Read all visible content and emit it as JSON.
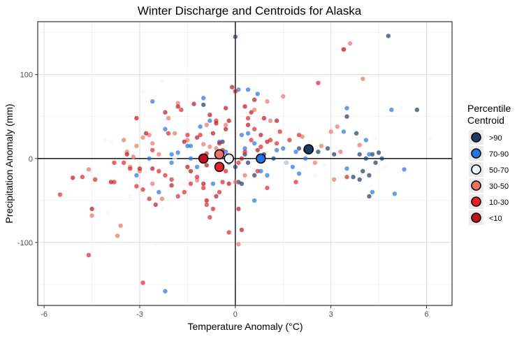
{
  "chart_data": {
    "type": "scatter",
    "title": "Winter Discharge and Centroids for Alaska",
    "xlabel": "Temperature Anomaly (°C)",
    "ylabel": "Precipitation Anomaly (mm)",
    "xlim": [
      -6.2,
      6.8
    ],
    "ylim": [
      -175,
      163
    ],
    "xticks": [
      -6,
      -3,
      0,
      3,
      6
    ],
    "xtick_labels": [
      "-6",
      "-3",
      "0",
      "3",
      "6"
    ],
    "yticks": [
      -100,
      0,
      100
    ],
    "ytick_labels": [
      "-100",
      "0",
      "100"
    ],
    "grid": true,
    "legend": {
      "title_lines": [
        "Percentile",
        "Centroid"
      ],
      "placement": "right",
      "entries": [
        ">90",
        "70-90",
        "50-70",
        "30-50",
        "10-30",
        "<10"
      ]
    },
    "colors": {
      ">90": "#1f3a66",
      "70-90": "#1f75f0",
      "50-70": "#f2f8fc",
      "30-50": "#ee7363",
      "10-30": "#ee1d24",
      "<10": "#c41018"
    },
    "series": [
      {
        "name": ">90",
        "centroid": [
          2.3,
          11
        ],
        "points": [
          [
            0,
            145
          ],
          [
            4.8,
            146
          ],
          [
            5.7,
            58
          ],
          [
            3.5,
            50
          ],
          [
            3.8,
            30
          ],
          [
            3.9,
            5
          ],
          [
            4.0,
            -15
          ],
          [
            4.2,
            -20
          ],
          [
            4.3,
            5
          ],
          [
            4.5,
            7
          ],
          [
            4.1,
            0
          ],
          [
            4.4,
            -5
          ],
          [
            3.7,
            -22
          ],
          [
            3.9,
            -25
          ],
          [
            4.2,
            -45
          ],
          [
            2.6,
            8
          ],
          [
            2.9,
            12
          ],
          [
            2.0,
            12
          ],
          [
            1.2,
            0
          ],
          [
            0.6,
            -20
          ],
          [
            0.4,
            -5
          ],
          [
            0.2,
            -30
          ],
          [
            0.1,
            -28
          ],
          [
            0,
            -10
          ],
          [
            -1,
            64
          ],
          [
            -0.4,
            20
          ],
          [
            0.3,
            5
          ],
          [
            4.6,
            0
          ],
          [
            1.6,
            -5
          ],
          [
            0.9,
            5
          ],
          [
            3.1,
            5
          ]
        ]
      },
      {
        "name": "70-90",
        "centroid": [
          0.8,
          0
        ],
        "points": [
          [
            -2.2,
            -158
          ],
          [
            -2.0,
            -5
          ],
          [
            -2.2,
            35
          ],
          [
            -2.0,
            5
          ],
          [
            -1.8,
            7
          ],
          [
            -1.5,
            15
          ],
          [
            -1.4,
            0
          ],
          [
            -1.2,
            -10
          ],
          [
            -1.1,
            38
          ],
          [
            -1,
            72
          ],
          [
            -0.8,
            45
          ],
          [
            -0.7,
            -30
          ],
          [
            -0.5,
            20
          ],
          [
            -0.3,
            8
          ],
          [
            -0.2,
            -5
          ],
          [
            0.2,
            28
          ],
          [
            0.4,
            30
          ],
          [
            0.6,
            18
          ],
          [
            0.8,
            -15
          ],
          [
            1.0,
            -20
          ],
          [
            1.3,
            10
          ],
          [
            1.5,
            12
          ],
          [
            1.8,
            -10
          ],
          [
            2.0,
            -18
          ],
          [
            2.2,
            0
          ],
          [
            0.1,
            82
          ],
          [
            0.4,
            82
          ],
          [
            0.7,
            77
          ],
          [
            3.4,
            32
          ],
          [
            3.5,
            60
          ],
          [
            4.1,
            22
          ],
          [
            4.3,
            -40
          ],
          [
            4.9,
            58
          ],
          [
            5.0,
            -42
          ],
          [
            5.3,
            -13
          ],
          [
            3.5,
            -12
          ],
          [
            4.2,
            5
          ],
          [
            0.6,
            -50
          ],
          [
            -2.4,
            -40
          ],
          [
            1.9,
            8
          ],
          [
            -3.1,
            -20
          ],
          [
            -2.6,
            68
          ],
          [
            -2.7,
            0
          ],
          [
            0.3,
            12
          ],
          [
            -1.4,
            15
          ]
        ]
      },
      {
        "name": "50-70",
        "centroid": [
          -0.2,
          0
        ],
        "points": [
          [
            -1.5,
            95
          ],
          [
            -2.3,
            92
          ],
          [
            -2.5,
            -103
          ],
          [
            -2.3,
            -60
          ],
          [
            -1.6,
            -30
          ],
          [
            -0.8,
            -15
          ],
          [
            -0.5,
            0
          ],
          [
            -0.3,
            15
          ],
          [
            1.2,
            15
          ],
          [
            1.6,
            -5
          ],
          [
            2.2,
            -10
          ],
          [
            2.8,
            -8
          ],
          [
            3.2,
            12
          ],
          [
            4.4,
            24
          ],
          [
            6.1,
            24
          ],
          [
            -3.9,
            -35
          ],
          [
            -4.0,
            -65
          ],
          [
            -4.4,
            -60
          ],
          [
            -3.9,
            20
          ],
          [
            -4.1,
            22
          ],
          [
            -1.9,
            0
          ],
          [
            1.5,
            40
          ],
          [
            2.0,
            35
          ],
          [
            -0.7,
            -60
          ],
          [
            0.1,
            60
          ],
          [
            4.7,
            -10
          ],
          [
            -3.3,
            -45
          ],
          [
            -2.9,
            80
          ],
          [
            5.2,
            60
          ],
          [
            2.5,
            -20
          ],
          [
            -0.9,
            25
          ]
        ]
      },
      {
        "name": "30-50",
        "centroid": [
          -0.5,
          5
        ],
        "points": [
          [
            -4.6,
            -13
          ],
          [
            -4.5,
            -68
          ],
          [
            -3.7,
            -92
          ],
          [
            -3.4,
            8
          ],
          [
            -3.3,
            -10
          ],
          [
            -3.1,
            15
          ],
          [
            -3.0,
            -15
          ],
          [
            -2.9,
            25
          ],
          [
            -2.7,
            28
          ],
          [
            -2.6,
            18
          ],
          [
            -2.3,
            -48
          ],
          [
            -2.1,
            48
          ],
          [
            -1.8,
            66
          ],
          [
            -1.5,
            22
          ],
          [
            -1.2,
            -26
          ],
          [
            -1.0,
            17
          ],
          [
            -0.8,
            14
          ],
          [
            -0.6,
            12
          ],
          [
            -0.3,
            40
          ],
          [
            0.0,
            -28
          ],
          [
            0.1,
            -102
          ],
          [
            1.0,
            68
          ],
          [
            1.5,
            74
          ],
          [
            2.1,
            26
          ],
          [
            2.7,
            15
          ],
          [
            3.0,
            32
          ],
          [
            3.2,
            38
          ],
          [
            3.4,
            130
          ],
          [
            3.6,
            137
          ],
          [
            3.9,
            16
          ],
          [
            4.0,
            95
          ],
          [
            3.3,
            8
          ],
          [
            -3.5,
            22
          ],
          [
            -3.2,
            2
          ],
          [
            -2.4,
            5
          ],
          [
            -1.9,
            30
          ],
          [
            -0.9,
            40
          ],
          [
            0.6,
            58
          ],
          [
            1.1,
            45
          ],
          [
            2.5,
            -5
          ],
          [
            3.1,
            -25
          ],
          [
            -3.6,
            -80
          ],
          [
            -2.6,
            -30
          ],
          [
            0.3,
            -20
          ]
        ]
      },
      {
        "name": "10-30",
        "centroid": [
          -0.5,
          -10
        ],
        "points": [
          [
            -5.5,
            -43
          ],
          [
            -4.8,
            -22
          ],
          [
            -4.6,
            -115
          ],
          [
            -4.4,
            -25
          ],
          [
            -3.8,
            -28
          ],
          [
            -3.5,
            -5
          ],
          [
            -3.3,
            -12
          ],
          [
            -3.1,
            -33
          ],
          [
            -2.9,
            -37
          ],
          [
            -2.6,
            10
          ],
          [
            -2.4,
            -15
          ],
          [
            -2.2,
            -20
          ],
          [
            -2.0,
            -25
          ],
          [
            -1.8,
            -45
          ],
          [
            -1.6,
            -40
          ],
          [
            -1.4,
            -30
          ],
          [
            -1.2,
            -22
          ],
          [
            -1.0,
            -35
          ],
          [
            -0.9,
            -55
          ],
          [
            -0.8,
            -70
          ],
          [
            -0.7,
            -60
          ],
          [
            -0.5,
            -40
          ],
          [
            -0.4,
            -28
          ],
          [
            -0.3,
            -15
          ],
          [
            -0.1,
            0
          ],
          [
            0.1,
            -5
          ],
          [
            0.3,
            8
          ],
          [
            0.5,
            22
          ],
          [
            0.6,
            35
          ],
          [
            0.8,
            14
          ],
          [
            1.1,
            22
          ],
          [
            1.3,
            18
          ],
          [
            1.7,
            22
          ],
          [
            2.0,
            28
          ],
          [
            2.6,
            90
          ],
          [
            3.4,
            130
          ],
          [
            3.5,
            -22
          ],
          [
            1.9,
            -28
          ],
          [
            -2.1,
            30
          ],
          [
            -1.7,
            58
          ],
          [
            -1.1,
            28
          ],
          [
            0.4,
            48
          ],
          [
            0.7,
            -15
          ],
          [
            -0.2,
            -88
          ],
          [
            -2.9,
            -148
          ],
          [
            -3.8,
            -5
          ],
          [
            -2.7,
            -48
          ],
          [
            1.0,
            -35
          ],
          [
            -0.6,
            45
          ],
          [
            1.4,
            32
          ],
          [
            -1.5,
            28
          ],
          [
            -0.9,
            6
          ]
        ]
      },
      {
        "name": "<10",
        "centroid": [
          -1.0,
          0
        ],
        "points": [
          [
            -5.1,
            -23
          ],
          [
            -4.5,
            -60
          ],
          [
            -3.9,
            -28
          ],
          [
            -3.4,
            5
          ],
          [
            -3.0,
            -12
          ],
          [
            -2.8,
            30
          ],
          [
            -2.5,
            -55
          ],
          [
            -2.2,
            55
          ],
          [
            -1.8,
            62
          ],
          [
            -1.6,
            20
          ],
          [
            -1.4,
            -15
          ],
          [
            -1.2,
            25
          ],
          [
            -1.1,
            0
          ],
          [
            -1.0,
            -30
          ],
          [
            -0.9,
            -50
          ],
          [
            -0.8,
            52
          ],
          [
            -0.7,
            30
          ],
          [
            -0.6,
            42
          ],
          [
            -0.5,
            18
          ],
          [
            -0.4,
            10
          ],
          [
            -0.3,
            35
          ],
          [
            -0.2,
            45
          ],
          [
            -0.1,
            85
          ],
          [
            0.0,
            80
          ],
          [
            0.1,
            -60
          ],
          [
            0.2,
            -85
          ],
          [
            0.3,
            62
          ],
          [
            0.4,
            40
          ],
          [
            0.5,
            55
          ],
          [
            0.6,
            70
          ],
          [
            0.8,
            28
          ],
          [
            1.0,
            20
          ],
          [
            1.3,
            45
          ],
          [
            2.2,
            10
          ],
          [
            -3.1,
            48
          ],
          [
            -2.6,
            -12
          ],
          [
            -2.0,
            -32
          ],
          [
            -1.3,
            65
          ],
          [
            -0.9,
            -8
          ],
          [
            -0.3,
            60
          ],
          [
            0.2,
            0
          ],
          [
            0.7,
            10
          ],
          [
            -0.6,
            -45
          ],
          [
            -0.2,
            -30
          ],
          [
            -1.5,
            -10
          ],
          [
            0.9,
            48
          ]
        ]
      }
    ]
  }
}
